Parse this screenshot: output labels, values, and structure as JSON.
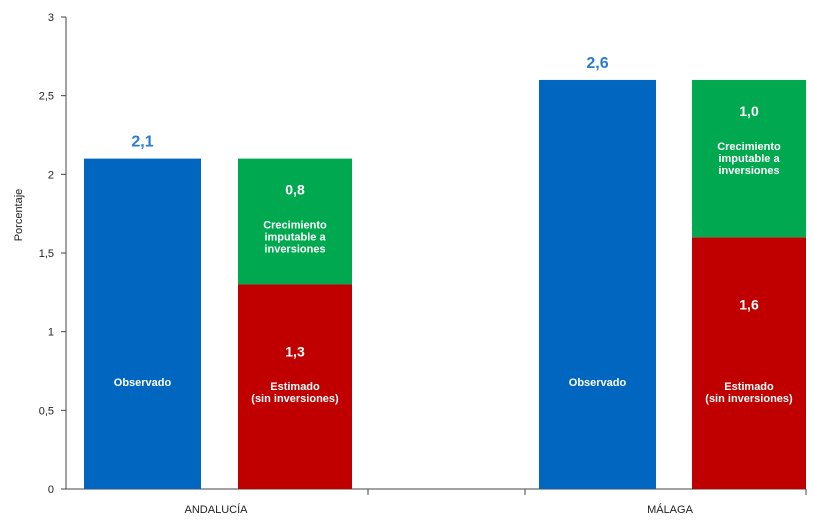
{
  "chart_data": {
    "type": "bar",
    "ylabel": "Porcentaje",
    "ylim": [
      0,
      3
    ],
    "yticks": [
      "0",
      "0,5",
      "1",
      "1,5",
      "2",
      "2,5",
      "3"
    ],
    "tick_values": [
      0,
      0.5,
      1,
      1.5,
      2,
      2.5,
      3
    ],
    "grid": false,
    "legend": "none",
    "colors": {
      "observed": "#0066c0",
      "estimated": "#c00000",
      "investment": "#00a84f",
      "top_label": "#2a7bd1"
    },
    "groups": [
      {
        "category": "ANDALUCÍA",
        "observed": {
          "value": 2.1,
          "top_label": "2,1",
          "label": "Observado"
        },
        "estimated": {
          "value": 1.3,
          "value_label": "1,3",
          "text_lines": [
            "Estimado",
            "(sin inversiones)"
          ]
        },
        "investment": {
          "value": 0.8,
          "value_label": "0,8",
          "text_lines": [
            "Crecimiento",
            "imputable a",
            "inversiones"
          ]
        }
      },
      {
        "category": "MÁLAGA",
        "observed": {
          "value": 2.6,
          "top_label": "2,6",
          "label": "Observado"
        },
        "estimated": {
          "value": 1.6,
          "value_label": "1,6",
          "text_lines": [
            "Estimado",
            "(sin inversiones)"
          ]
        },
        "investment": {
          "value": 1.0,
          "value_label": "1,0",
          "text_lines": [
            "Crecimiento",
            "imputable a",
            "inversiones"
          ]
        }
      }
    ]
  }
}
